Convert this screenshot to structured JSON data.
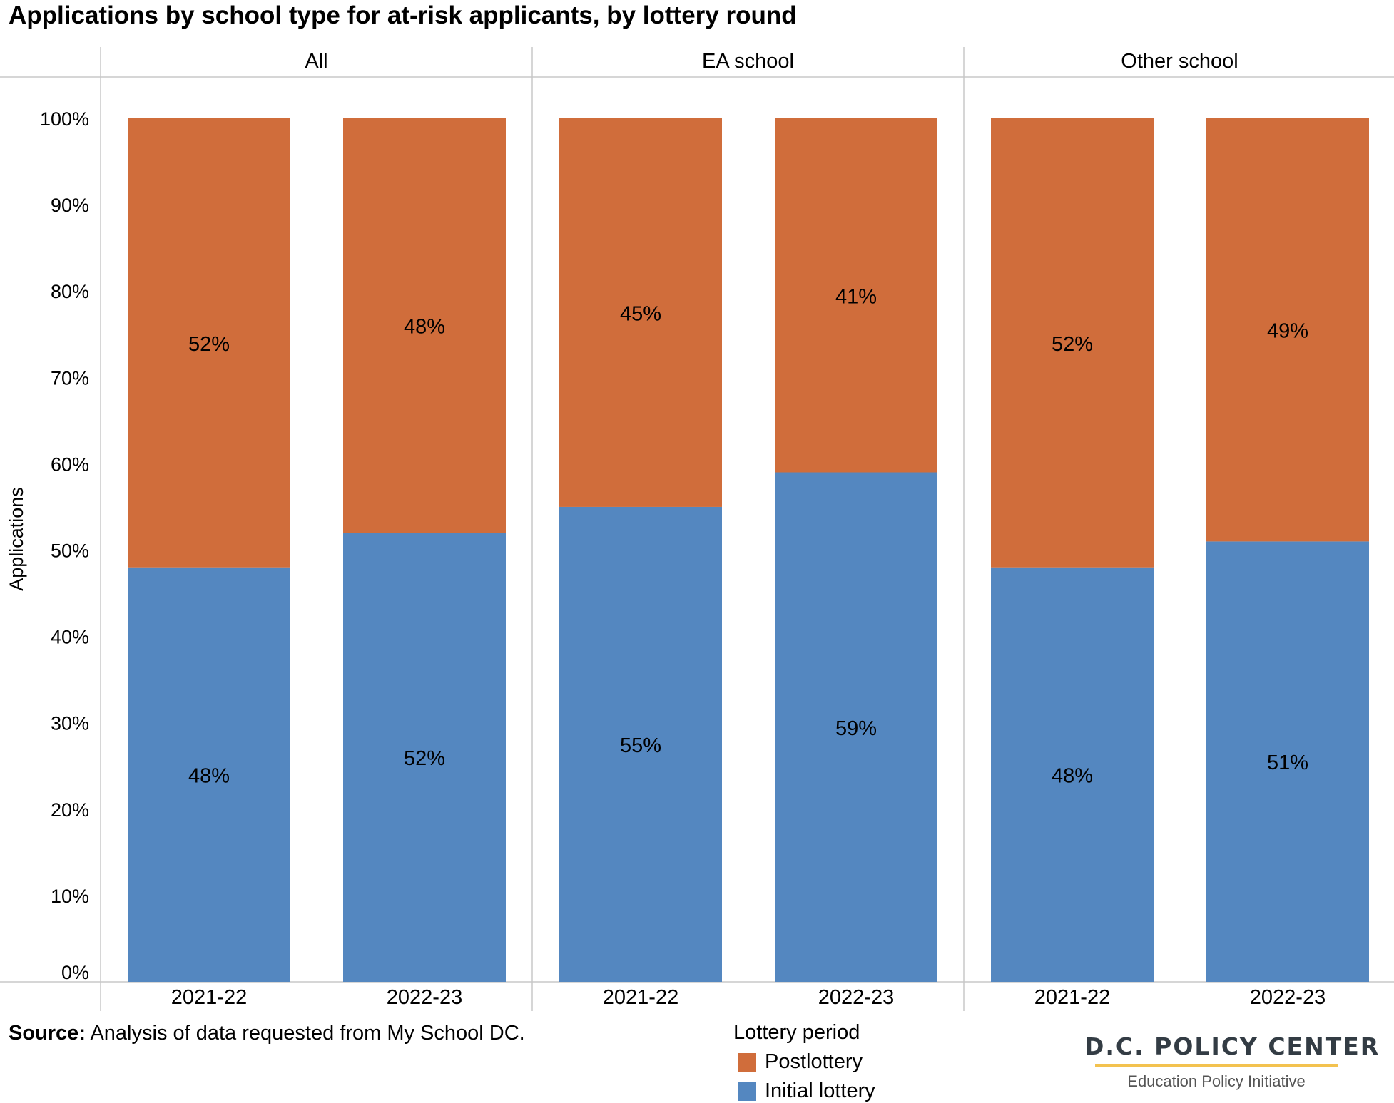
{
  "title": "Applications by school type for at-risk applicants, by lottery round",
  "source_label": "Source:",
  "source_text": "Analysis of data requested from My School DC.",
  "legend": {
    "title": "Lottery period",
    "items": [
      {
        "label": "Postlottery",
        "color": "#d06d3b"
      },
      {
        "label": "Initial lottery",
        "color": "#5487c0"
      }
    ]
  },
  "brand": {
    "name": "D.C. POLICY CENTER",
    "subtitle": "Education Policy Initiative"
  },
  "chart_data": {
    "type": "bar",
    "stacked": true,
    "ylabel": "Applications",
    "ylim": [
      0,
      100
    ],
    "yticks": [
      "0%",
      "10%",
      "20%",
      "30%",
      "40%",
      "50%",
      "60%",
      "70%",
      "80%",
      "90%",
      "100%"
    ],
    "panels": [
      "All",
      "EA school",
      "Other school"
    ],
    "categories": [
      "2021-22",
      "2022-23"
    ],
    "series": [
      {
        "name": "Initial lottery",
        "color": "#5487c0",
        "values": [
          [
            48,
            52
          ],
          [
            55,
            59
          ],
          [
            48,
            51
          ]
        ],
        "labels": [
          [
            "48%",
            "52%"
          ],
          [
            "55%",
            "59%"
          ],
          [
            "48%",
            "51%"
          ]
        ]
      },
      {
        "name": "Postlottery",
        "color": "#d06d3b",
        "values": [
          [
            52,
            48
          ],
          [
            45,
            41
          ],
          [
            52,
            49
          ]
        ],
        "labels": [
          [
            "52%",
            "48%"
          ],
          [
            "45%",
            "41%"
          ],
          [
            "52%",
            "49%"
          ]
        ]
      }
    ]
  }
}
